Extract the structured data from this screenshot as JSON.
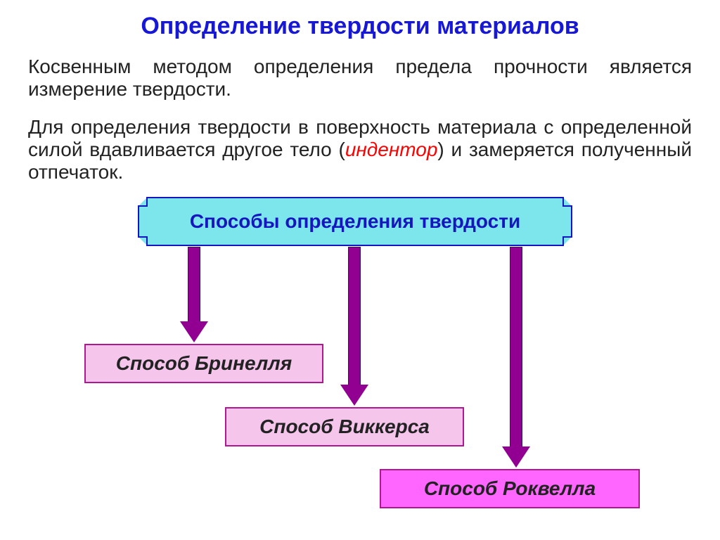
{
  "title": {
    "text": "Определение твердости материалов",
    "color": "#1717d6",
    "fontsize": 34
  },
  "paragraphs": {
    "p1": {
      "text": "Косвенным методом определения предела прочности является измерение твердости.",
      "color": "#222222",
      "fontsize": 28
    },
    "p2_pre": "Для определения твердости в поверхность материала с определенной силой вдавливается другое тело (",
    "p2_hl": "индентор",
    "p2_post": ") и замеряется полученный отпечаток.",
    "p2_color": "#222222",
    "p2_hl_color": "#ff0000",
    "p2_fontsize": 28
  },
  "diagram": {
    "type": "flowchart",
    "main": {
      "label": "Способы определения твердости",
      "bg": "#7de5ec",
      "border": "#1616c0",
      "text_color": "#1616c0",
      "fontsize": 28,
      "border_width": 2
    },
    "arrows": {
      "fill": "#910091",
      "border": "#2e1670",
      "shaft_heights": [
        106,
        196,
        284
      ],
      "head_height": 30
    },
    "methods": [
      {
        "label": "Способ Бринелля",
        "bg": "#f5c5ec",
        "border": "#b01890",
        "text_color": "#222222",
        "fontsize": 28
      },
      {
        "label": "Способ Виккерса",
        "bg": "#f5c5ec",
        "border": "#b01890",
        "text_color": "#222222",
        "fontsize": 28
      },
      {
        "label": "Способ Роквелла",
        "bg": "#ff66ff",
        "border": "#b01890",
        "text_color": "#222222",
        "fontsize": 28
      }
    ]
  }
}
